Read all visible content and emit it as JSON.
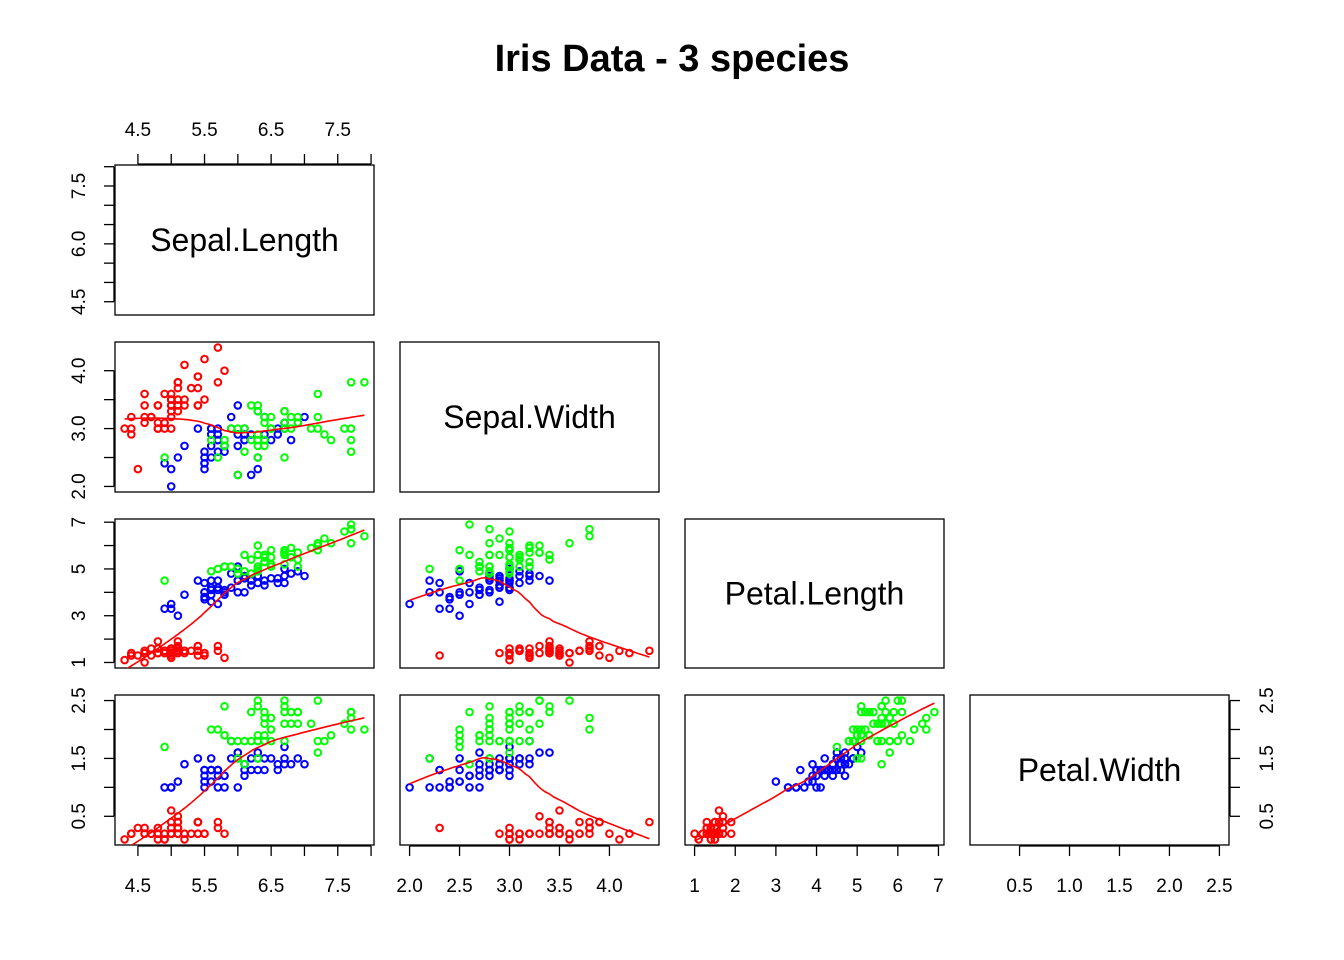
{
  "chart_data": {
    "type": "scatter",
    "subtype": "scatterplot-matrix (pairs, lower panels)",
    "title": "Iris Data - 3 species",
    "variables": [
      {
        "name": "Sepal.Length",
        "range": [
          4.3,
          7.9
        ],
        "ticks": [
          4.5,
          5.5,
          6.5,
          7.5
        ],
        "tick_labels": [
          "4.5",
          "5.5",
          "6.5",
          "7.5"
        ],
        "left_ticks": [
          4.5,
          6.0,
          7.5
        ],
        "left_tick_labels": [
          "4.5",
          "6.0",
          "7.5"
        ],
        "minor_step": 0.5
      },
      {
        "name": "Sepal.Width",
        "range": [
          2.0,
          4.4
        ],
        "ticks": [
          2.0,
          2.5,
          3.0,
          3.5,
          4.0
        ],
        "tick_labels": [
          "2.0",
          "2.5",
          "3.0",
          "3.5",
          "4.0"
        ],
        "left_ticks": [
          2.0,
          3.0,
          4.0
        ],
        "left_tick_labels": [
          "2.0",
          "3.0",
          "4.0"
        ],
        "minor_step": 0.5
      },
      {
        "name": "Petal.Length",
        "range": [
          1.0,
          6.9
        ],
        "ticks": [
          1,
          2,
          3,
          4,
          5,
          6,
          7
        ],
        "tick_labels": [
          "1",
          "2",
          "3",
          "4",
          "5",
          "6",
          "7"
        ],
        "left_ticks": [
          1,
          3,
          5,
          7
        ],
        "left_tick_labels": [
          "1",
          "3",
          "5",
          "7"
        ],
        "minor_step": 1
      },
      {
        "name": "Petal.Width",
        "range": [
          0.1,
          2.5
        ],
        "ticks": [
          0.5,
          1.0,
          1.5,
          2.0,
          2.5
        ],
        "tick_labels": [
          "0.5",
          "1.0",
          "1.5",
          "2.0",
          "2.5"
        ],
        "left_ticks": [
          0.5,
          1.5,
          2.5
        ],
        "left_tick_labels": [
          "0.5",
          "1.5",
          "2.5"
        ],
        "minor_step": 0.5
      }
    ],
    "species": [
      {
        "color": "#ff0000",
        "points": [
          [
            5.1,
            3.5,
            1.4,
            0.2
          ],
          [
            4.9,
            3.0,
            1.4,
            0.2
          ],
          [
            4.7,
            3.2,
            1.3,
            0.2
          ],
          [
            4.6,
            3.1,
            1.5,
            0.2
          ],
          [
            5.0,
            3.6,
            1.4,
            0.2
          ],
          [
            5.4,
            3.9,
            1.7,
            0.4
          ],
          [
            4.6,
            3.4,
            1.4,
            0.3
          ],
          [
            5.0,
            3.4,
            1.5,
            0.2
          ],
          [
            4.4,
            2.9,
            1.4,
            0.2
          ],
          [
            4.9,
            3.1,
            1.5,
            0.1
          ],
          [
            5.4,
            3.7,
            1.5,
            0.2
          ],
          [
            4.8,
            3.4,
            1.6,
            0.2
          ],
          [
            4.8,
            3.0,
            1.4,
            0.1
          ],
          [
            4.3,
            3.0,
            1.1,
            0.1
          ],
          [
            5.8,
            4.0,
            1.2,
            0.2
          ],
          [
            5.7,
            4.4,
            1.5,
            0.4
          ],
          [
            5.4,
            3.9,
            1.3,
            0.4
          ],
          [
            5.1,
            3.5,
            1.4,
            0.3
          ],
          [
            5.7,
            3.8,
            1.7,
            0.3
          ],
          [
            5.1,
            3.8,
            1.5,
            0.3
          ],
          [
            5.4,
            3.4,
            1.7,
            0.2
          ],
          [
            5.1,
            3.7,
            1.5,
            0.4
          ],
          [
            4.6,
            3.6,
            1.0,
            0.2
          ],
          [
            5.1,
            3.3,
            1.7,
            0.5
          ],
          [
            4.8,
            3.4,
            1.9,
            0.2
          ],
          [
            5.0,
            3.0,
            1.6,
            0.2
          ],
          [
            5.0,
            3.4,
            1.6,
            0.4
          ],
          [
            5.2,
            3.5,
            1.5,
            0.2
          ],
          [
            5.2,
            3.4,
            1.4,
            0.2
          ],
          [
            4.7,
            3.2,
            1.6,
            0.2
          ],
          [
            4.8,
            3.1,
            1.6,
            0.2
          ],
          [
            5.4,
            3.4,
            1.5,
            0.4
          ],
          [
            5.2,
            4.1,
            1.5,
            0.1
          ],
          [
            5.5,
            4.2,
            1.4,
            0.2
          ],
          [
            4.9,
            3.1,
            1.5,
            0.2
          ],
          [
            5.0,
            3.2,
            1.2,
            0.2
          ],
          [
            5.5,
            3.5,
            1.3,
            0.2
          ],
          [
            4.9,
            3.6,
            1.4,
            0.1
          ],
          [
            4.4,
            3.0,
            1.3,
            0.2
          ],
          [
            5.1,
            3.4,
            1.5,
            0.2
          ],
          [
            5.0,
            3.5,
            1.3,
            0.3
          ],
          [
            4.5,
            2.3,
            1.3,
            0.3
          ],
          [
            4.4,
            3.2,
            1.3,
            0.2
          ],
          [
            5.0,
            3.5,
            1.6,
            0.6
          ],
          [
            5.1,
            3.8,
            1.9,
            0.4
          ],
          [
            4.8,
            3.0,
            1.4,
            0.3
          ],
          [
            5.1,
            3.8,
            1.6,
            0.2
          ],
          [
            4.6,
            3.2,
            1.4,
            0.2
          ],
          [
            5.3,
            3.7,
            1.5,
            0.2
          ],
          [
            5.0,
            3.3,
            1.4,
            0.2
          ]
        ]
      },
      {
        "color": "#0000ff",
        "points": [
          [
            7.0,
            3.2,
            4.7,
            1.4
          ],
          [
            6.4,
            3.2,
            4.5,
            1.5
          ],
          [
            6.9,
            3.1,
            4.9,
            1.5
          ],
          [
            5.5,
            2.3,
            4.0,
            1.3
          ],
          [
            6.5,
            2.8,
            4.6,
            1.5
          ],
          [
            5.7,
            2.8,
            4.5,
            1.3
          ],
          [
            6.3,
            3.3,
            4.7,
            1.6
          ],
          [
            4.9,
            2.4,
            3.3,
            1.0
          ],
          [
            6.6,
            2.9,
            4.6,
            1.3
          ],
          [
            5.2,
            2.7,
            3.9,
            1.4
          ],
          [
            5.0,
            2.0,
            3.5,
            1.0
          ],
          [
            5.9,
            3.0,
            4.2,
            1.5
          ],
          [
            6.0,
            2.2,
            4.0,
            1.0
          ],
          [
            6.1,
            2.9,
            4.7,
            1.4
          ],
          [
            5.6,
            2.9,
            3.6,
            1.3
          ],
          [
            6.7,
            3.1,
            4.4,
            1.4
          ],
          [
            5.6,
            3.0,
            4.5,
            1.5
          ],
          [
            5.8,
            2.7,
            4.1,
            1.0
          ],
          [
            6.2,
            2.2,
            4.5,
            1.5
          ],
          [
            5.6,
            2.5,
            3.9,
            1.1
          ],
          [
            5.9,
            3.2,
            4.8,
            1.8
          ],
          [
            6.1,
            2.8,
            4.0,
            1.3
          ],
          [
            6.3,
            2.5,
            4.9,
            1.5
          ],
          [
            6.1,
            2.8,
            4.7,
            1.2
          ],
          [
            6.4,
            2.9,
            4.3,
            1.3
          ],
          [
            6.6,
            3.0,
            4.4,
            1.4
          ],
          [
            6.8,
            2.8,
            4.8,
            1.4
          ],
          [
            6.7,
            3.0,
            5.0,
            1.7
          ],
          [
            6.0,
            2.9,
            4.5,
            1.5
          ],
          [
            5.7,
            2.6,
            3.5,
            1.0
          ],
          [
            5.5,
            2.4,
            3.8,
            1.1
          ],
          [
            5.5,
            2.4,
            3.7,
            1.0
          ],
          [
            5.8,
            2.7,
            3.9,
            1.2
          ],
          [
            6.0,
            2.7,
            5.1,
            1.6
          ],
          [
            5.4,
            3.0,
            4.5,
            1.5
          ],
          [
            6.0,
            3.4,
            4.5,
            1.6
          ],
          [
            6.7,
            3.1,
            4.7,
            1.5
          ],
          [
            6.3,
            2.3,
            4.4,
            1.3
          ],
          [
            5.6,
            3.0,
            4.1,
            1.3
          ],
          [
            5.5,
            2.5,
            4.0,
            1.3
          ],
          [
            5.5,
            2.6,
            4.4,
            1.2
          ],
          [
            6.1,
            3.0,
            4.6,
            1.4
          ],
          [
            5.8,
            2.6,
            4.0,
            1.2
          ],
          [
            5.0,
            2.3,
            3.3,
            1.0
          ],
          [
            5.6,
            2.7,
            4.2,
            1.3
          ],
          [
            5.7,
            3.0,
            4.2,
            1.2
          ],
          [
            5.7,
            2.9,
            4.2,
            1.3
          ],
          [
            6.2,
            2.9,
            4.3,
            1.3
          ],
          [
            5.1,
            2.5,
            3.0,
            1.1
          ],
          [
            5.7,
            2.8,
            4.1,
            1.3
          ]
        ]
      },
      {
        "color": "#00ff00",
        "points": [
          [
            6.3,
            3.3,
            6.0,
            2.5
          ],
          [
            5.8,
            2.7,
            5.1,
            1.9
          ],
          [
            7.1,
            3.0,
            5.9,
            2.1
          ],
          [
            6.3,
            2.9,
            5.6,
            1.8
          ],
          [
            6.5,
            3.0,
            5.8,
            2.2
          ],
          [
            7.6,
            3.0,
            6.6,
            2.1
          ],
          [
            4.9,
            2.5,
            4.5,
            1.7
          ],
          [
            7.3,
            2.9,
            6.3,
            1.8
          ],
          [
            6.7,
            2.5,
            5.8,
            1.8
          ],
          [
            7.2,
            3.6,
            6.1,
            2.5
          ],
          [
            6.5,
            3.2,
            5.1,
            2.0
          ],
          [
            6.4,
            2.7,
            5.3,
            1.9
          ],
          [
            6.8,
            3.0,
            5.5,
            2.1
          ],
          [
            5.7,
            2.5,
            5.0,
            2.0
          ],
          [
            5.8,
            2.8,
            5.1,
            2.4
          ],
          [
            6.4,
            3.2,
            5.3,
            2.3
          ],
          [
            6.5,
            3.0,
            5.5,
            1.8
          ],
          [
            7.7,
            3.8,
            6.7,
            2.2
          ],
          [
            7.7,
            2.6,
            6.9,
            2.3
          ],
          [
            6.0,
            2.2,
            5.0,
            1.5
          ],
          [
            6.9,
            3.2,
            5.7,
            2.3
          ],
          [
            5.6,
            2.8,
            4.9,
            2.0
          ],
          [
            7.7,
            2.8,
            6.7,
            2.0
          ],
          [
            6.3,
            2.7,
            4.9,
            1.8
          ],
          [
            6.7,
            3.3,
            5.7,
            2.1
          ],
          [
            7.2,
            3.2,
            6.0,
            1.8
          ],
          [
            6.2,
            2.8,
            4.8,
            1.8
          ],
          [
            6.1,
            3.0,
            4.9,
            1.8
          ],
          [
            6.4,
            2.8,
            5.6,
            2.1
          ],
          [
            7.2,
            3.0,
            5.8,
            1.6
          ],
          [
            7.4,
            2.8,
            6.1,
            1.9
          ],
          [
            7.9,
            3.8,
            6.4,
            2.0
          ],
          [
            6.4,
            2.8,
            5.6,
            2.2
          ],
          [
            6.3,
            2.8,
            5.1,
            1.5
          ],
          [
            6.1,
            2.6,
            5.6,
            1.4
          ],
          [
            7.7,
            3.0,
            6.1,
            2.3
          ],
          [
            6.3,
            3.4,
            5.6,
            2.4
          ],
          [
            6.4,
            3.1,
            5.5,
            1.8
          ],
          [
            6.0,
            3.0,
            4.8,
            1.8
          ],
          [
            6.9,
            3.1,
            5.4,
            2.1
          ],
          [
            6.7,
            3.1,
            5.6,
            2.4
          ],
          [
            6.9,
            3.1,
            5.1,
            2.3
          ],
          [
            5.8,
            2.7,
            5.1,
            1.9
          ],
          [
            6.8,
            3.2,
            5.9,
            2.3
          ],
          [
            6.7,
            3.3,
            5.7,
            2.5
          ],
          [
            6.7,
            3.0,
            5.2,
            2.3
          ],
          [
            6.3,
            2.5,
            5.0,
            1.9
          ],
          [
            6.5,
            3.0,
            5.2,
            2.0
          ],
          [
            6.2,
            3.4,
            5.4,
            2.3
          ],
          [
            5.9,
            3.0,
            5.1,
            1.8
          ]
        ]
      }
    ],
    "smooth_color": "#ff0000",
    "diagonal_labels": [
      "Sepal.Length",
      "Sepal.Width",
      "Petal.Length",
      "Petal.Width"
    ]
  }
}
